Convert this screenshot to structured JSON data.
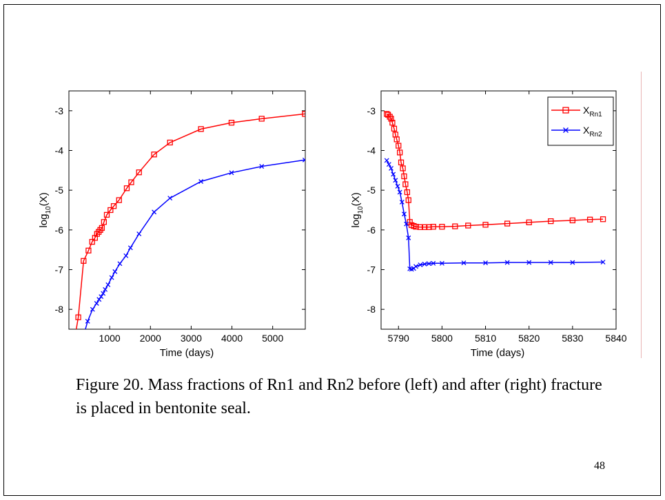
{
  "caption": "Figure 20. Mass fractions of Rn1 and Rn2 before (left) and after (right) fracture is placed in bentonite seal.",
  "page_number": "48",
  "colors": {
    "rn1": "#ff0000",
    "rn2": "#0000ff"
  },
  "chart_data": [
    {
      "type": "line",
      "title": "",
      "xlabel": "Time (days)",
      "ylabel_base": "log",
      "ylabel_sub": "10",
      "ylabel_tail": "(X)",
      "xlim": [
        0,
        5800
      ],
      "ylim": [
        -8.5,
        -2.5
      ],
      "xticks": [
        1000,
        2000,
        3000,
        4000,
        5000
      ],
      "xtick_labels": [
        "1000",
        "2000",
        "3000",
        "4000",
        "5000"
      ],
      "yticks": [
        -8,
        -7,
        -6,
        -5,
        -4,
        -3
      ],
      "ytick_labels": [
        "-8",
        "-7",
        "-6",
        "-5",
        "-4",
        "-3"
      ],
      "grid": false,
      "series": [
        {
          "marker": "square",
          "color": "#ff0000",
          "x": [
            0,
            230,
            360,
            480,
            570,
            640,
            690,
            730,
            770,
            810,
            860,
            930,
            1020,
            1100,
            1230,
            1420,
            1530,
            1720,
            2090,
            2480,
            3240,
            3990,
            4730,
            5790
          ],
          "y": [
            -9.6,
            -8.2,
            -6.78,
            -6.52,
            -6.3,
            -6.2,
            -6.1,
            -6.05,
            -6.0,
            -5.95,
            -5.8,
            -5.62,
            -5.5,
            -5.4,
            -5.25,
            -4.95,
            -4.8,
            -4.55,
            -4.1,
            -3.8,
            -3.46,
            -3.3,
            -3.2,
            -3.08
          ]
        },
        {
          "marker": "x",
          "color": "#0000ff",
          "x": [
            100,
            460,
            580,
            680,
            740,
            790,
            840,
            890,
            960,
            1050,
            1130,
            1250,
            1400,
            1510,
            1720,
            2090,
            2480,
            3240,
            3990,
            4730,
            5790
          ],
          "y": [
            -9.6,
            -8.3,
            -8.0,
            -7.85,
            -7.75,
            -7.68,
            -7.6,
            -7.5,
            -7.38,
            -7.2,
            -7.05,
            -6.85,
            -6.65,
            -6.45,
            -6.1,
            -5.55,
            -5.2,
            -4.78,
            -4.56,
            -4.4,
            -4.24
          ]
        }
      ]
    },
    {
      "type": "line",
      "title": "",
      "xlabel": "Time (days)",
      "ylabel_base": "log",
      "ylabel_sub": "10",
      "ylabel_tail": "(X)",
      "xlim": [
        5786,
        5840
      ],
      "ylim": [
        -8.5,
        -2.5
      ],
      "xticks": [
        5790,
        5800,
        5810,
        5820,
        5830,
        5840
      ],
      "xtick_labels": [
        "5790",
        "5800",
        "5810",
        "5820",
        "5830",
        "5840"
      ],
      "yticks": [
        -8,
        -7,
        -6,
        -5,
        -4,
        -3
      ],
      "ytick_labels": [
        "-8",
        "-7",
        "-6",
        "-5",
        "-4",
        "-3"
      ],
      "grid": false,
      "legend_position": "top-right",
      "legend": [
        {
          "base": "X",
          "sub": "Rn1"
        },
        {
          "base": "X",
          "sub": "Rn2"
        }
      ],
      "series": [
        {
          "marker": "square",
          "color": "#ff0000",
          "x": [
            5787.3,
            5787.6,
            5788.0,
            5788.3,
            5788.6,
            5789.0,
            5789.3,
            5789.6,
            5790.0,
            5790.3,
            5790.6,
            5791.0,
            5791.3,
            5791.6,
            5792.0,
            5792.3,
            5792.6,
            5793.0,
            5793.5,
            5794.0,
            5795.0,
            5796.0,
            5797.0,
            5798.0,
            5800.0,
            5803.0,
            5806.0,
            5810.0,
            5815.0,
            5820.0,
            5825.0,
            5830.0,
            5834.0,
            5837.0
          ],
          "y": [
            -3.08,
            -3.1,
            -3.15,
            -3.2,
            -3.3,
            -3.45,
            -3.6,
            -3.72,
            -3.88,
            -4.05,
            -4.3,
            -4.45,
            -4.65,
            -4.85,
            -5.05,
            -5.25,
            -5.8,
            -5.88,
            -5.9,
            -5.92,
            -5.93,
            -5.93,
            -5.93,
            -5.92,
            -5.92,
            -5.91,
            -5.89,
            -5.87,
            -5.84,
            -5.81,
            -5.78,
            -5.76,
            -5.74,
            -5.73
          ]
        },
        {
          "marker": "x",
          "color": "#0000ff",
          "x": [
            5787.3,
            5787.8,
            5788.3,
            5788.8,
            5789.3,
            5789.8,
            5790.3,
            5790.8,
            5791.3,
            5791.8,
            5792.3,
            5792.6,
            5793.0,
            5793.5,
            5794.0,
            5795.0,
            5796.0,
            5797.0,
            5798.0,
            5800.0,
            5805.0,
            5810.0,
            5815.0,
            5820.0,
            5825.0,
            5830.0,
            5837.0
          ],
          "y": [
            -4.25,
            -4.35,
            -4.45,
            -4.6,
            -4.75,
            -4.9,
            -5.05,
            -5.3,
            -5.6,
            -5.85,
            -6.2,
            -6.98,
            -6.99,
            -6.97,
            -6.92,
            -6.88,
            -6.86,
            -6.85,
            -6.84,
            -6.84,
            -6.83,
            -6.83,
            -6.82,
            -6.82,
            -6.82,
            -6.82,
            -6.81
          ]
        }
      ]
    }
  ]
}
